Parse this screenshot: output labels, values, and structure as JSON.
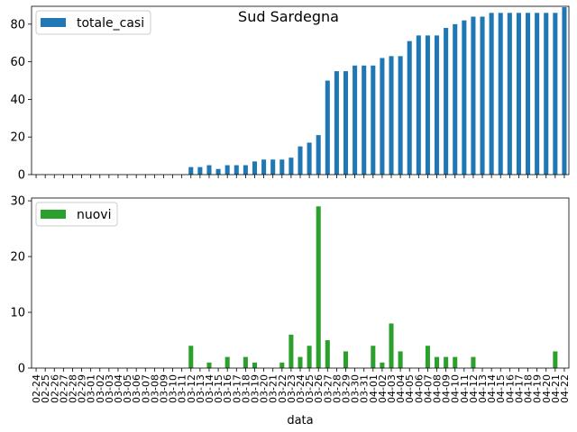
{
  "title": "Sud Sardegna",
  "colors": {
    "totale": "#1f77b4",
    "nuovi": "#2ca02c"
  },
  "chart_data": [
    {
      "type": "bar",
      "title": "Sud Sardegna",
      "xlabel": "",
      "ylabel": "",
      "legend": "top-left",
      "ylim": [
        0,
        89.5
      ],
      "yticks": [
        0,
        20,
        40,
        60,
        80
      ],
      "categories": [
        "02-24",
        "02-25",
        "02-26",
        "02-27",
        "02-28",
        "02-29",
        "03-01",
        "03-02",
        "03-03",
        "03-04",
        "03-05",
        "03-06",
        "03-07",
        "03-08",
        "03-09",
        "03-10",
        "03-11",
        "03-12",
        "03-13",
        "03-14",
        "03-15",
        "03-16",
        "03-17",
        "03-18",
        "03-19",
        "03-20",
        "03-21",
        "03-22",
        "03-23",
        "03-24",
        "03-25",
        "03-26",
        "03-27",
        "03-28",
        "03-29",
        "03-30",
        "03-31",
        "04-01",
        "04-02",
        "04-03",
        "04-04",
        "04-05",
        "04-06",
        "04-07",
        "04-08",
        "04-09",
        "04-10",
        "04-11",
        "04-12",
        "04-13",
        "04-14",
        "04-15",
        "04-16",
        "04-17",
        "04-18",
        "04-19",
        "04-20",
        "04-21",
        "04-22"
      ],
      "series": [
        {
          "name": "totale_casi",
          "values": [
            0,
            0,
            0,
            0,
            0,
            0,
            0,
            0,
            0,
            0,
            0,
            0,
            0,
            0,
            0,
            0,
            0,
            4,
            4,
            5,
            3,
            5,
            5,
            5,
            7,
            8,
            8,
            8,
            9,
            15,
            17,
            21,
            50,
            55,
            55,
            58,
            58,
            58,
            62,
            63,
            63,
            71,
            74,
            74,
            74,
            78,
            80,
            82,
            84,
            84,
            86,
            86,
            86,
            86,
            86,
            86,
            86,
            86,
            89
          ]
        }
      ]
    },
    {
      "type": "bar",
      "title": "",
      "xlabel": "data",
      "ylabel": "",
      "legend": "top-left",
      "ylim": [
        0,
        30.5
      ],
      "yticks": [
        0,
        10,
        20,
        30
      ],
      "categories": [
        "02-24",
        "02-25",
        "02-26",
        "02-27",
        "02-28",
        "02-29",
        "03-01",
        "03-02",
        "03-03",
        "03-04",
        "03-05",
        "03-06",
        "03-07",
        "03-08",
        "03-09",
        "03-10",
        "03-11",
        "03-12",
        "03-13",
        "03-14",
        "03-15",
        "03-16",
        "03-17",
        "03-18",
        "03-19",
        "03-20",
        "03-21",
        "03-22",
        "03-23",
        "03-24",
        "03-25",
        "03-26",
        "03-27",
        "03-28",
        "03-29",
        "03-30",
        "03-31",
        "04-01",
        "04-02",
        "04-03",
        "04-04",
        "04-05",
        "04-06",
        "04-07",
        "04-08",
        "04-09",
        "04-10",
        "04-11",
        "04-12",
        "04-13",
        "04-14",
        "04-15",
        "04-16",
        "04-17",
        "04-18",
        "04-19",
        "04-20",
        "04-21",
        "04-22"
      ],
      "series": [
        {
          "name": "nuovi",
          "values": [
            0,
            0,
            0,
            0,
            0,
            0,
            0,
            0,
            0,
            0,
            0,
            0,
            0,
            0,
            0,
            0,
            0,
            4,
            0,
            1,
            0,
            2,
            0,
            2,
            1,
            0,
            0,
            1,
            6,
            2,
            4,
            29,
            5,
            0,
            3,
            0,
            0,
            4,
            1,
            8,
            3,
            0,
            0,
            4,
            2,
            2,
            2,
            0,
            2,
            0,
            0,
            0,
            0,
            0,
            0,
            0,
            0,
            3,
            0
          ]
        }
      ]
    }
  ]
}
